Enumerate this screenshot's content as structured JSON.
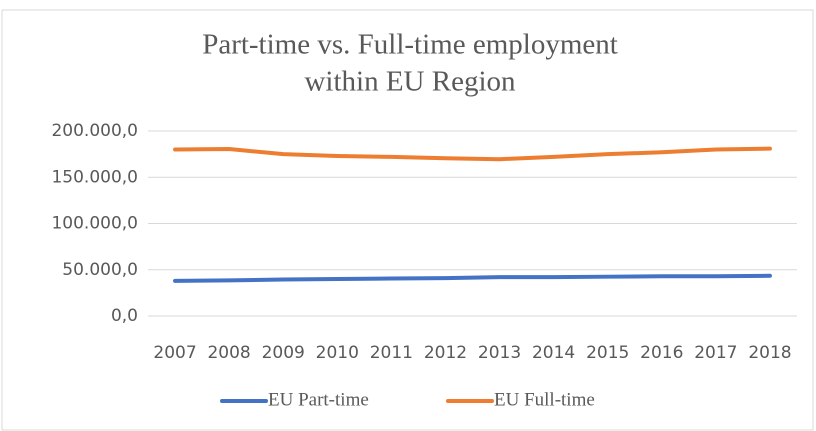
{
  "chart_data": {
    "type": "line",
    "title": [
      "Part-time vs. Full-time employment",
      "within EU Region"
    ],
    "categories": [
      "2007",
      "2008",
      "2009",
      "2010",
      "2011",
      "2012",
      "2013",
      "2014",
      "2015",
      "2016",
      "2017",
      "2018"
    ],
    "series": [
      {
        "name": "EU Part-time",
        "color": "#4472c4",
        "values": [
          38000,
          38500,
          39500,
          40000,
          40500,
          41000,
          42000,
          42000,
          42500,
          43000,
          43000,
          43500
        ]
      },
      {
        "name": "EU Full-time",
        "color": "#ed7d31",
        "values": [
          180000,
          180500,
          175000,
          173000,
          172000,
          170500,
          169500,
          172000,
          175000,
          177000,
          180000,
          181000
        ]
      }
    ],
    "ylim": [
      0,
      200000
    ],
    "yticks": [
      {
        "value": 0,
        "label": "0,0"
      },
      {
        "value": 50000,
        "label": "50.000,0"
      },
      {
        "value": 100000,
        "label": "100.000,0"
      },
      {
        "value": 150000,
        "label": "150.000,0"
      },
      {
        "value": 200000,
        "label": "200.000,0"
      }
    ],
    "grid": true,
    "legend": "bottom"
  }
}
